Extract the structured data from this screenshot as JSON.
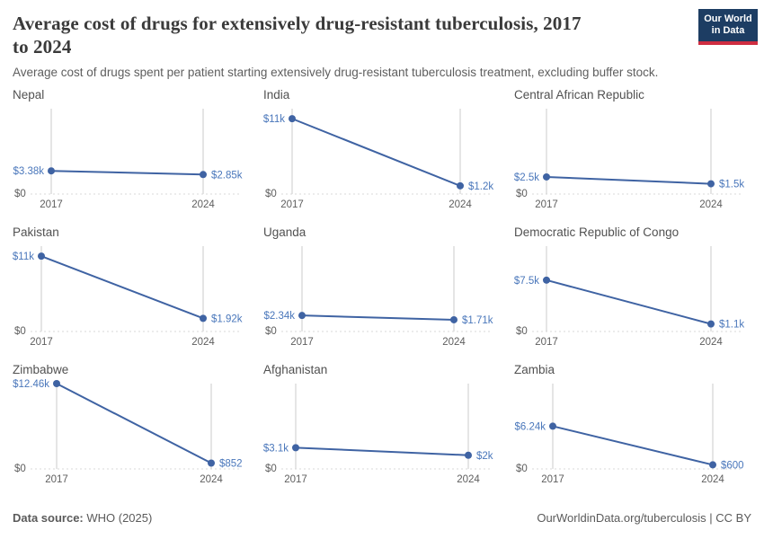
{
  "header": {
    "title_line1": "Average cost of drugs for extensively drug-resistant tuberculosis, 2017",
    "title_line2": "to 2024",
    "subtitle": "Average cost of drugs spent per patient starting extensively drug-resistant tuberculosis treatment, excluding buffer stock."
  },
  "logo": {
    "line1": "Our World",
    "line2": "in Data",
    "bg_color": "#1d3d63",
    "accent_color": "#cf2d41"
  },
  "chart_data": {
    "type": "line",
    "x": [
      2017,
      2024
    ],
    "x_tick_labels": [
      "2017",
      "2024"
    ],
    "ylim": [
      0,
      12460
    ],
    "shared_y_scale": true,
    "grid": "vertical-ticks-plus-dotted-zero-line",
    "legend_position": "none",
    "zero_label": "$0",
    "series": [
      {
        "name": "Nepal",
        "values": [
          3380,
          2850
        ],
        "labels": [
          "$3.38k",
          "$2.85k"
        ]
      },
      {
        "name": "India",
        "values": [
          11000,
          1200
        ],
        "labels": [
          "$11k",
          "$1.2k"
        ]
      },
      {
        "name": "Central African Republic",
        "values": [
          2500,
          1500
        ],
        "labels": [
          "$2.5k",
          "$1.5k"
        ]
      },
      {
        "name": "Pakistan",
        "values": [
          11000,
          1920
        ],
        "labels": [
          "$11k",
          "$1.92k"
        ]
      },
      {
        "name": "Uganda",
        "values": [
          2340,
          1710
        ],
        "labels": [
          "$2.34k",
          "$1.71k"
        ]
      },
      {
        "name": "Democratic Republic of Congo",
        "values": [
          7500,
          1100
        ],
        "labels": [
          "$7.5k",
          "$1.1k"
        ]
      },
      {
        "name": "Zimbabwe",
        "values": [
          12460,
          852
        ],
        "labels": [
          "$12.46k",
          "$852"
        ]
      },
      {
        "name": "Afghanistan",
        "values": [
          3100,
          2000
        ],
        "labels": [
          "$3.1k",
          "$2k"
        ]
      },
      {
        "name": "Zambia",
        "values": [
          6240,
          600
        ],
        "labels": [
          "$6.24k",
          "$600"
        ]
      }
    ]
  },
  "colors": {
    "line": "#3f63a3",
    "point": "#3f63a3",
    "value_label": "#4a77bb",
    "grid_line": "#cbcbcb",
    "zero_line": "#d8d8d8",
    "axis_text": "#5e5e5e"
  },
  "footer": {
    "source_label": "Data source:",
    "source_value": " WHO (2025)",
    "credit": "OurWorldinData.org/tuberculosis | CC BY"
  }
}
